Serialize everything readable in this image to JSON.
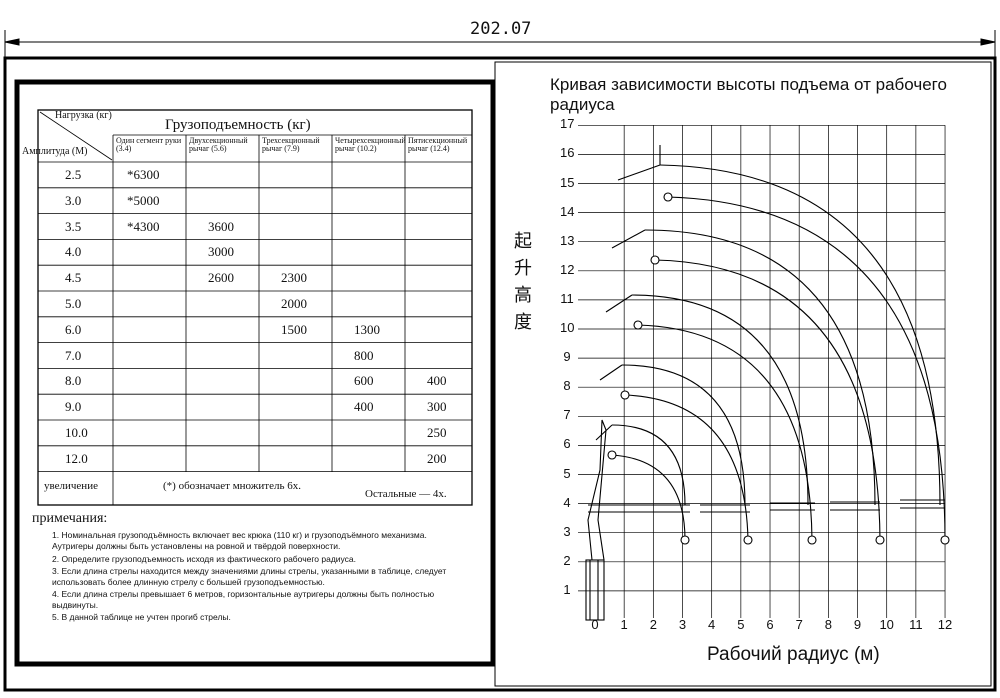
{
  "dimension": "202.07",
  "table": {
    "corner_top": "Нагрузка (кг)",
    "corner_left": "Амплитуда (М)",
    "title": "Грузоподъемность (кг)",
    "columns": [
      "Один сегмент руки (3.4)",
      "Двухсекционный рычаг (5.6)",
      "Трехсекционный рычаг (7.9)",
      "Четырехсекционный рычаг (10.2)",
      "Пятисекционный рычаг (12.4)"
    ],
    "rows": [
      [
        "2.5",
        "*6300",
        null,
        null,
        null,
        null
      ],
      [
        "3.0",
        "*5000",
        null,
        null,
        null,
        null
      ],
      [
        "3.5",
        "*4300",
        "3600",
        null,
        null,
        null
      ],
      [
        "4.0",
        null,
        "3000",
        null,
        null,
        null
      ],
      [
        "4.5",
        null,
        "2600",
        "2300",
        null,
        null
      ],
      [
        "5.0",
        null,
        null,
        "2000",
        null,
        null
      ],
      [
        "6.0",
        null,
        null,
        "1500",
        "1300",
        null
      ],
      [
        "7.0",
        null,
        null,
        null,
        "800",
        null
      ],
      [
        "8.0",
        null,
        null,
        null,
        "600",
        "400"
      ],
      [
        "9.0",
        null,
        null,
        null,
        "400",
        "300"
      ],
      [
        "10.0",
        null,
        null,
        null,
        null,
        "250"
      ],
      [
        "12.0",
        null,
        null,
        null,
        null,
        "200"
      ]
    ],
    "footer": {
      "label": "увеличение",
      "note": "(*) обозначает множитель 6х.",
      "other": "Остальные — 4х."
    }
  },
  "notes": {
    "title": "примечания:",
    "items": [
      "1.  Номинальная грузоподъёмность включает вес крюка (110 кг) и грузоподъёмного механизма. Аутригеры должны быть установлены на ровной и твёрдой поверхности.",
      "2. Определите грузоподъемность исходя из фактического рабочего радиуса.",
      "3. Если длина стрелы находится между значениями длины стрелы, указанными в таблице, следует использовать более длинную стрелу с большей грузоподъемностью.",
      "4. Если длина стрелы превышает 6 метров, горизонтальные аутригеры должны быть полностью выдвинуты.",
      "5. В данной таблице не учтен прогиб стрелы."
    ]
  },
  "chart": {
    "title": "Кривая зависимости высоты подъема от рабочего радиуса",
    "y_label": "起升高度",
    "x_label": "Рабочий радиус (м)",
    "xticks": [
      0,
      1,
      2,
      3,
      4,
      5,
      6,
      7,
      8,
      9,
      10,
      11,
      12
    ],
    "yticks": [
      1,
      2,
      3,
      4,
      5,
      6,
      7,
      8,
      9,
      10,
      11,
      12,
      13,
      14,
      15,
      16,
      17
    ]
  }
}
